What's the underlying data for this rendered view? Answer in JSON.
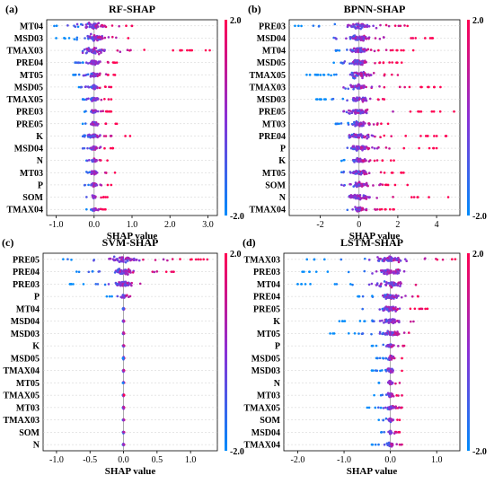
{
  "colorbar": {
    "top_label": "2.0",
    "bottom_label": "-2.0",
    "color_high": "#ff0052",
    "color_low": "#008bfb"
  },
  "chart_data": [
    {
      "type": "scatter",
      "panel_label": "(a)",
      "title": "RF-SHAP",
      "xlabel": "SHAP value",
      "xlim": [
        -1.25,
        3.25
      ],
      "xticks": [
        -1.0,
        0.0,
        1.0,
        2.0,
        3.0
      ],
      "xtick_labels": [
        "-1.0",
        "0.0",
        "1.0",
        "2.0",
        "3.0"
      ],
      "features": [
        {
          "name": "MT04",
          "min": -1.05,
          "max": 1.0,
          "width": 5.5
        },
        {
          "name": "MSD03",
          "min": -1.0,
          "max": 0.9,
          "width": 5.0
        },
        {
          "name": "TMAX03",
          "min": -0.3,
          "max": 3.05,
          "width": 6.0
        },
        {
          "name": "PRE04",
          "min": -0.5,
          "max": 0.6,
          "width": 3.5
        },
        {
          "name": "MT05",
          "min": -0.55,
          "max": 0.55,
          "width": 3.5
        },
        {
          "name": "MSD05",
          "min": -0.4,
          "max": 0.45,
          "width": 3.5
        },
        {
          "name": "TMAX05",
          "min": -0.3,
          "max": 0.45,
          "width": 3.5
        },
        {
          "name": "PRE03",
          "min": -0.25,
          "max": 0.45,
          "width": 3.0
        },
        {
          "name": "PRE05",
          "min": -0.3,
          "max": 0.6,
          "width": 3.0
        },
        {
          "name": "K",
          "min": -0.3,
          "max": 0.95,
          "width": 3.0
        },
        {
          "name": "MSD04",
          "min": -0.3,
          "max": 0.5,
          "width": 3.0
        },
        {
          "name": "N",
          "min": -0.2,
          "max": 0.35,
          "width": 3.0
        },
        {
          "name": "MT03",
          "min": -0.2,
          "max": 0.55,
          "width": 3.0
        },
        {
          "name": "P",
          "min": -0.25,
          "max": 0.45,
          "width": 3.0
        },
        {
          "name": "SOM",
          "min": -0.2,
          "max": 0.35,
          "width": 3.0
        },
        {
          "name": "TMAX04",
          "min": -0.2,
          "max": 0.3,
          "width": 3.0
        }
      ]
    },
    {
      "type": "scatter",
      "panel_label": "(b)",
      "title": "BPNN-SHAP",
      "xlabel": "SHAP value",
      "xlim": [
        -3.6,
        5.2
      ],
      "xticks": [
        -2,
        0,
        2,
        4
      ],
      "xtick_labels": [
        "-2",
        "0",
        "2",
        "4"
      ],
      "features": [
        {
          "name": "PRE03",
          "min": -3.3,
          "max": 2.5,
          "width": 5.0
        },
        {
          "name": "MSD04",
          "min": -1.3,
          "max": 3.8,
          "width": 4.5
        },
        {
          "name": "MT04",
          "min": -1.2,
          "max": 2.8,
          "width": 4.0
        },
        {
          "name": "MSD05",
          "min": -1.3,
          "max": 2.2,
          "width": 4.5
        },
        {
          "name": "TMAX05",
          "min": -2.7,
          "max": 2.0,
          "width": 5.0
        },
        {
          "name": "TMAX03",
          "min": -0.8,
          "max": 4.2,
          "width": 4.0
        },
        {
          "name": "MSD03",
          "min": -2.2,
          "max": 1.3,
          "width": 4.0
        },
        {
          "name": "PRE05",
          "min": -0.8,
          "max": 4.9,
          "width": 4.0
        },
        {
          "name": "MT03",
          "min": -1.2,
          "max": 1.5,
          "width": 4.0
        },
        {
          "name": "PRE04",
          "min": -0.5,
          "max": 4.5,
          "width": 4.0
        },
        {
          "name": "P",
          "min": -0.6,
          "max": 4.0,
          "width": 4.0
        },
        {
          "name": "K",
          "min": -0.9,
          "max": 1.8,
          "width": 4.0
        },
        {
          "name": "MT05",
          "min": -0.9,
          "max": 2.3,
          "width": 4.0
        },
        {
          "name": "SOM",
          "min": -0.9,
          "max": 2.5,
          "width": 4.0
        },
        {
          "name": "N",
          "min": -0.5,
          "max": 4.6,
          "width": 4.0
        },
        {
          "name": "TMAX04",
          "min": -0.6,
          "max": 1.8,
          "width": 4.0
        }
      ]
    },
    {
      "type": "scatter",
      "panel_label": "(c)",
      "title": "SVM-SHAP",
      "xlabel": "SHAP value",
      "xlim": [
        -1.2,
        1.4
      ],
      "xticks": [
        -1.0,
        -0.5,
        0.0,
        0.5,
        1.0
      ],
      "xtick_labels": [
        "-1.0",
        "-0.5",
        "0.0",
        "0.5",
        "1.0"
      ],
      "features": [
        {
          "name": "PRE05",
          "min": -0.9,
          "max": 1.25,
          "width": 5.0
        },
        {
          "name": "PRE04",
          "min": -0.7,
          "max": 0.75,
          "width": 5.0
        },
        {
          "name": "PRE03",
          "min": -0.8,
          "max": 0.25,
          "width": 4.0
        },
        {
          "name": "P",
          "min": -0.25,
          "max": 0.1,
          "width": 3.0
        },
        {
          "name": "MT04",
          "min": -0.01,
          "max": 0.01,
          "width": 2.0
        },
        {
          "name": "MSD04",
          "min": -0.01,
          "max": 0.01,
          "width": 2.0
        },
        {
          "name": "MSD03",
          "min": -0.01,
          "max": 0.01,
          "width": 2.0
        },
        {
          "name": "K",
          "min": -0.01,
          "max": 0.01,
          "width": 2.0
        },
        {
          "name": "MSD05",
          "min": -0.01,
          "max": 0.01,
          "width": 2.0
        },
        {
          "name": "TMAX04",
          "min": -0.01,
          "max": 0.01,
          "width": 2.0
        },
        {
          "name": "MT05",
          "min": -0.01,
          "max": 0.01,
          "width": 2.0
        },
        {
          "name": "TMAX05",
          "min": -0.01,
          "max": 0.01,
          "width": 2.0
        },
        {
          "name": "MT03",
          "min": -0.01,
          "max": 0.01,
          "width": 2.0
        },
        {
          "name": "TMAX03",
          "min": -0.01,
          "max": 0.01,
          "width": 2.0
        },
        {
          "name": "SOM",
          "min": -0.01,
          "max": 0.01,
          "width": 2.0
        },
        {
          "name": "N",
          "min": -0.01,
          "max": 0.01,
          "width": 2.0
        }
      ]
    },
    {
      "type": "scatter",
      "panel_label": "(d)",
      "title": "LSTM-SHAP",
      "xlabel": "SHAP value",
      "xlim": [
        -2.3,
        1.5
      ],
      "xticks": [
        -2.0,
        -1.0,
        0.0,
        1.0
      ],
      "xtick_labels": [
        "-2.0",
        "-1.0",
        "0.0",
        "1.0"
      ],
      "features": [
        {
          "name": "TMAX03",
          "min": -1.8,
          "max": 1.4,
          "width": 4.5
        },
        {
          "name": "PRE03",
          "min": -1.9,
          "max": 0.3,
          "width": 4.5
        },
        {
          "name": "MT04",
          "min": -2.0,
          "max": 0.55,
          "width": 4.5
        },
        {
          "name": "PRE04",
          "min": -0.7,
          "max": 0.6,
          "width": 4.0
        },
        {
          "name": "PRE05",
          "min": -0.6,
          "max": 0.8,
          "width": 4.0
        },
        {
          "name": "K",
          "min": -1.1,
          "max": 0.5,
          "width": 4.0
        },
        {
          "name": "MT05",
          "min": -1.3,
          "max": 0.4,
          "width": 4.0
        },
        {
          "name": "P",
          "min": -0.4,
          "max": 0.3,
          "width": 3.5
        },
        {
          "name": "MSD05",
          "min": -0.3,
          "max": 0.25,
          "width": 3.5
        },
        {
          "name": "MSD03",
          "min": -0.4,
          "max": 0.25,
          "width": 3.5
        },
        {
          "name": "N",
          "min": -0.25,
          "max": 0.2,
          "width": 3.5
        },
        {
          "name": "MT03",
          "min": -0.35,
          "max": 0.25,
          "width": 3.5
        },
        {
          "name": "TMAX05",
          "min": -0.5,
          "max": 0.25,
          "width": 3.5
        },
        {
          "name": "SOM",
          "min": -0.25,
          "max": 0.2,
          "width": 3.5
        },
        {
          "name": "MSD04",
          "min": -0.2,
          "max": 0.2,
          "width": 3.5
        },
        {
          "name": "TMAX04",
          "min": -0.4,
          "max": 0.25,
          "width": 3.5
        }
      ]
    }
  ]
}
